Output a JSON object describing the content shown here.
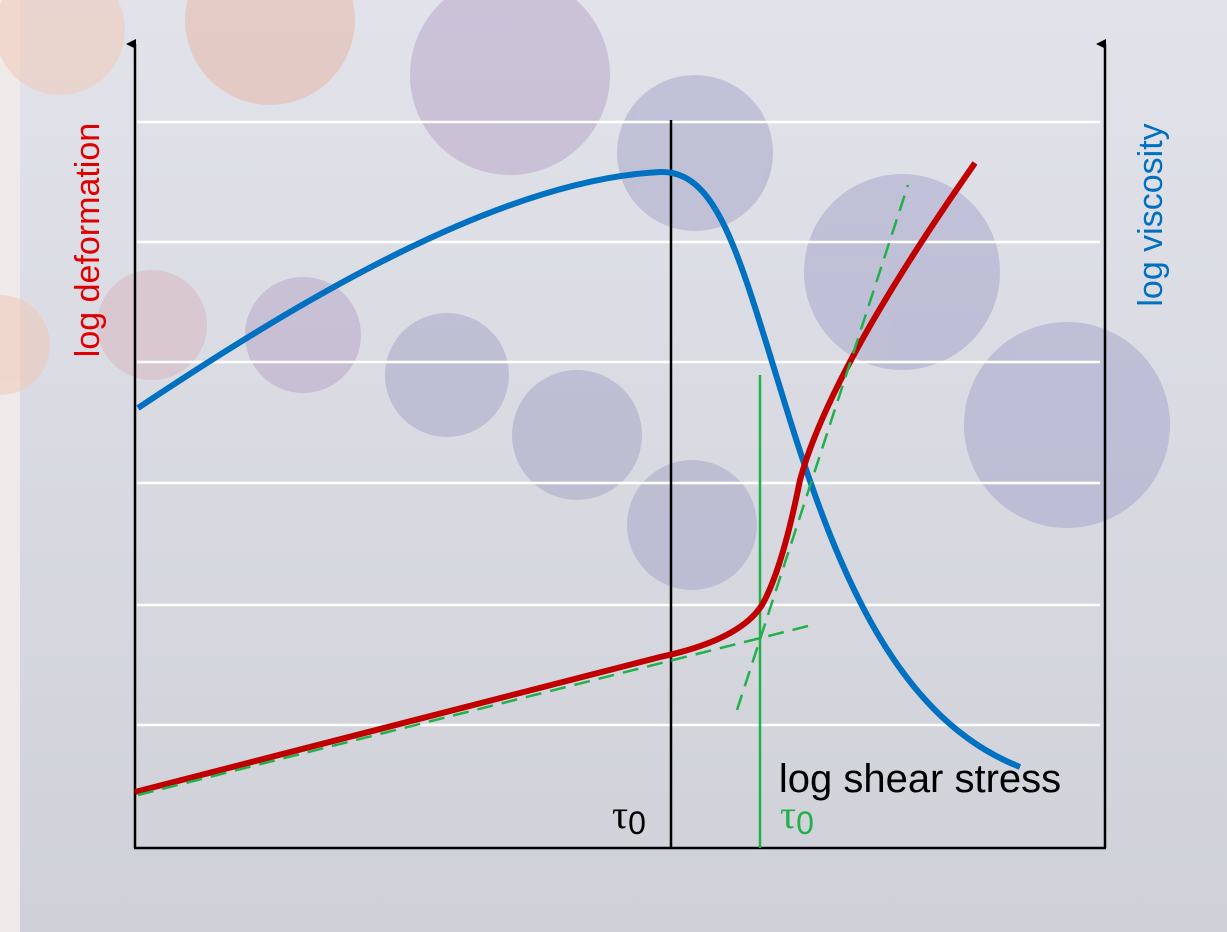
{
  "axes": {
    "y_left_label": "log deformation",
    "y_right_label": "log viscosity",
    "x_label": "log shear stress"
  },
  "markers": [
    {
      "symbol": "τ",
      "subscript": "0"
    },
    {
      "symbol": "τ",
      "subscript": "0"
    }
  ]
}
